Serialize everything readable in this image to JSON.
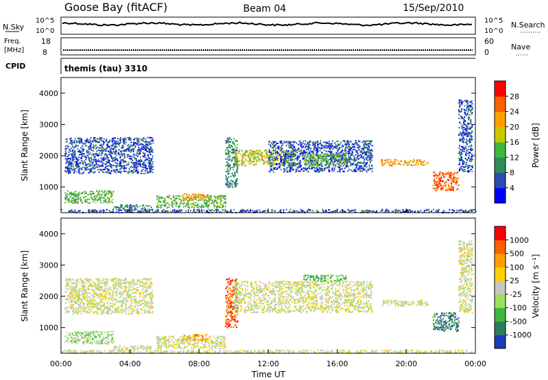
{
  "header": {
    "station": "Goose Bay (fitACF)",
    "beam": "Beam 04",
    "date": "15/Sep/2010"
  },
  "nsky_panel": {
    "left_label": "N.Sky",
    "left_ticks": [
      "10^5",
      "10^0"
    ],
    "right_ticks": [
      "10^5",
      "10^0"
    ],
    "right_label": "N.Search"
  },
  "freq_panel": {
    "left_label_line1": "Freq.",
    "left_label_line2": "[MHz]",
    "left_ticks": [
      "18",
      "8"
    ],
    "right_ticks": [
      "60",
      "0"
    ],
    "right_label": "Nave"
  },
  "cpid_panel": {
    "label": "CPID",
    "program": "themis (tau) 3310"
  },
  "chart_data": [
    {
      "type": "heatmap",
      "title": "",
      "xlabel": "Time UT",
      "ylabel": "Slant Range [km]",
      "x_ticks": [
        "00:00",
        "04:00",
        "08:00",
        "12:00",
        "16:00",
        "20:00",
        "00:00"
      ],
      "xlim": [
        0,
        24
      ],
      "ylim": [
        180,
        4500
      ],
      "y_ticks": [
        1000,
        2000,
        3000,
        4000
      ],
      "colorbar": {
        "label": "Power [dB]",
        "ticks": [
          "4",
          "8",
          "12",
          "16",
          "20",
          "24",
          "28"
        ],
        "colors": [
          "#0000ff",
          "#2a4ab4",
          "#2e8b57",
          "#3cb83c",
          "#c8c800",
          "#ffa000",
          "#ff6000",
          "#ff0000"
        ]
      },
      "regions": [
        {
          "t": [
            0.2,
            5.3
          ],
          "r": [
            1450,
            2600
          ],
          "level": 1
        },
        {
          "t": [
            0.2,
            3.0
          ],
          "r": [
            500,
            900
          ],
          "level": 3
        },
        {
          "t": [
            3.0,
            5.2
          ],
          "r": [
            300,
            450
          ],
          "level": 2
        },
        {
          "t": [
            5.5,
            9.5
          ],
          "r": [
            350,
            750
          ],
          "level": 3
        },
        {
          "t": [
            7.0,
            8.5
          ],
          "r": [
            600,
            800
          ],
          "level": 5
        },
        {
          "t": [
            9.5,
            10.2
          ],
          "r": [
            1000,
            2600
          ],
          "level": 2
        },
        {
          "t": [
            10.0,
            13.5
          ],
          "r": [
            1700,
            2200
          ],
          "level": 4
        },
        {
          "t": [
            12.0,
            18.0
          ],
          "r": [
            1500,
            2500
          ],
          "level": 1
        },
        {
          "t": [
            14.0,
            16.5
          ],
          "r": [
            1700,
            2100
          ],
          "level": 3
        },
        {
          "t": [
            18.5,
            21.3
          ],
          "r": [
            1700,
            1900
          ],
          "level": 5
        },
        {
          "t": [
            21.5,
            23.0
          ],
          "r": [
            900,
            1500
          ],
          "level": 6
        },
        {
          "t": [
            23.0,
            23.8
          ],
          "r": [
            1500,
            3800
          ],
          "level": 1
        },
        {
          "t": [
            0.0,
            24.0
          ],
          "r": [
            200,
            300
          ],
          "level": 1
        }
      ]
    },
    {
      "type": "heatmap",
      "title": "",
      "xlabel": "Time UT",
      "ylabel": "Slant Range [km]",
      "x_ticks": [
        "00:00",
        "04:00",
        "08:00",
        "12:00",
        "16:00",
        "20:00",
        "00:00"
      ],
      "xlim": [
        0,
        24
      ],
      "ylim": [
        180,
        4500
      ],
      "y_ticks": [
        1000,
        2000,
        3000,
        4000
      ],
      "colorbar": {
        "label": "Velocity [m s⁻¹]",
        "ticks": [
          "1000",
          "500",
          "100",
          "25",
          "-25",
          "-100",
          "-500",
          "-1000"
        ],
        "colors": [
          "#1a3cb4",
          "#2e7d5a",
          "#3cb83c",
          "#9be05a",
          "#c8c8c0",
          "#ffd000",
          "#ffa000",
          "#ff6000",
          "#ff0000"
        ]
      },
      "regions": [
        {
          "t": [
            0.2,
            5.3
          ],
          "r": [
            1450,
            2600
          ],
          "level": 4
        },
        {
          "t": [
            0.2,
            3.0
          ],
          "r": [
            500,
            900
          ],
          "level": 3
        },
        {
          "t": [
            3.0,
            5.2
          ],
          "r": [
            300,
            450
          ],
          "level": 4
        },
        {
          "t": [
            5.5,
            9.5
          ],
          "r": [
            350,
            750
          ],
          "level": 4
        },
        {
          "t": [
            7.0,
            8.5
          ],
          "r": [
            600,
            800
          ],
          "level": 6
        },
        {
          "t": [
            9.5,
            10.2
          ],
          "r": [
            1000,
            2600
          ],
          "level": 7
        },
        {
          "t": [
            10.0,
            18.0
          ],
          "r": [
            1500,
            2500
          ],
          "level": 4
        },
        {
          "t": [
            14.0,
            16.5
          ],
          "r": [
            2500,
            2700
          ],
          "level": 2
        },
        {
          "t": [
            18.5,
            21.3
          ],
          "r": [
            1700,
            1900
          ],
          "level": 4
        },
        {
          "t": [
            21.5,
            23.0
          ],
          "r": [
            900,
            1500
          ],
          "level": 1
        },
        {
          "t": [
            23.0,
            23.8
          ],
          "r": [
            1500,
            3800
          ],
          "level": 4
        },
        {
          "t": [
            0.0,
            24.0
          ],
          "r": [
            200,
            300
          ],
          "level": 4
        }
      ]
    }
  ]
}
